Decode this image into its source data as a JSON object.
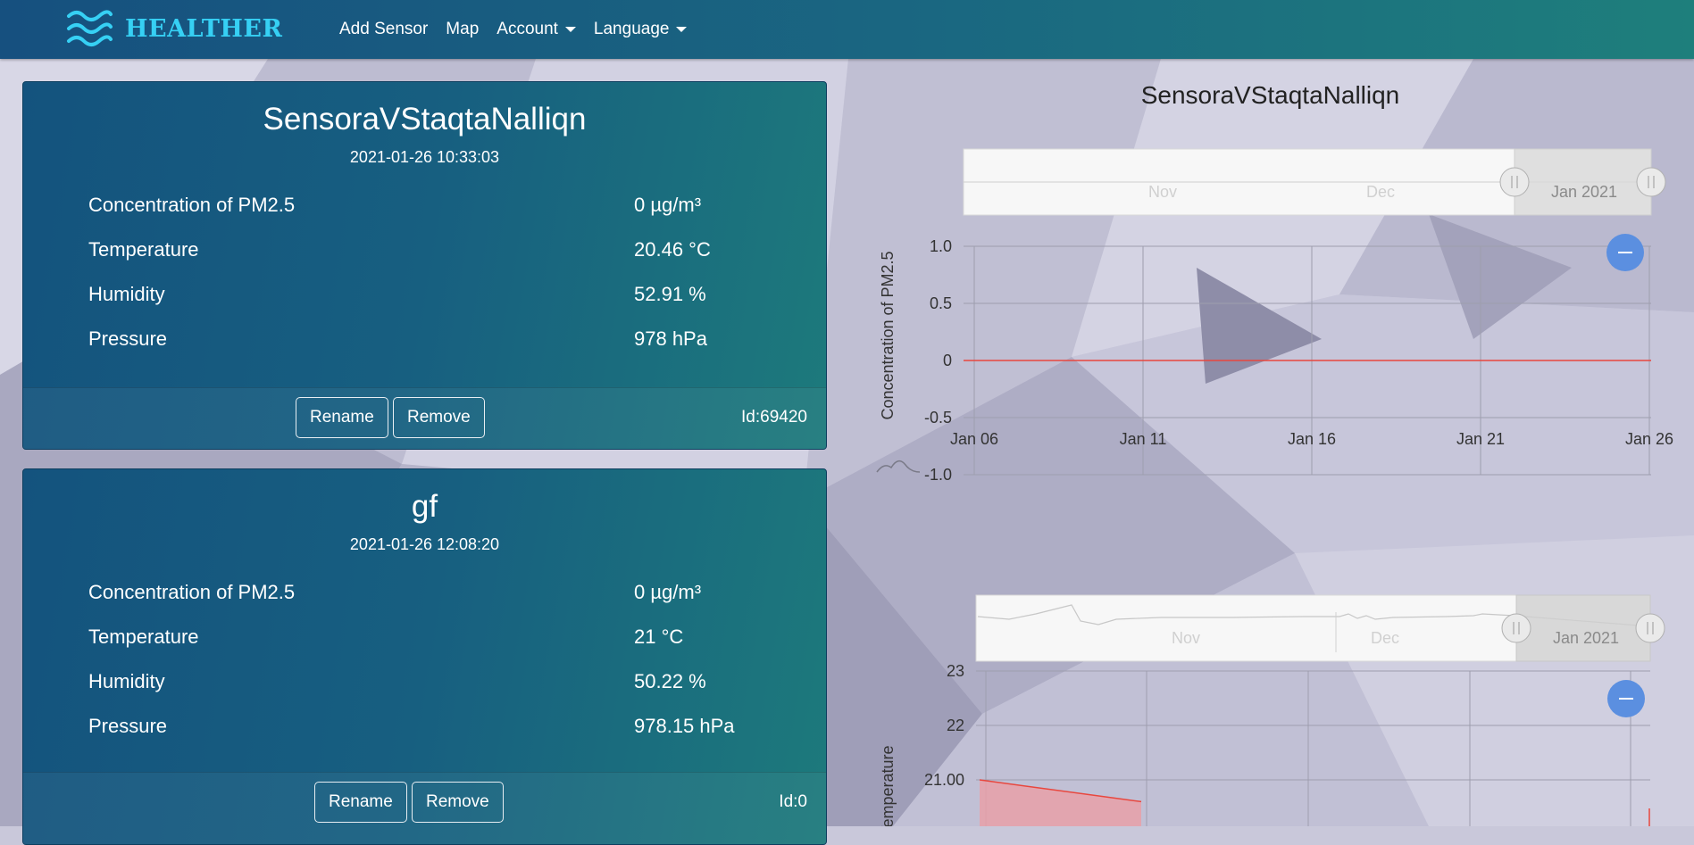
{
  "navbar": {
    "brand": "HEALTHER",
    "links": [
      "Add Sensor",
      "Map",
      "Account",
      "Language"
    ]
  },
  "sensors": [
    {
      "name": "SensoraVStaqtaNalliqn",
      "timestamp": "2021-01-26 10:33:03",
      "readings": [
        {
          "label": "Concentration of PM2.5",
          "value": "0 µg/m³"
        },
        {
          "label": "Temperature",
          "value": "20.46 °C"
        },
        {
          "label": "Humidity",
          "value": "52.91 %"
        },
        {
          "label": "Pressure",
          "value": "978 hPa"
        }
      ],
      "rename_label": "Rename",
      "remove_label": "Remove",
      "id_label": "Id:69420"
    },
    {
      "name": "gf",
      "timestamp": "2021-01-26 12:08:20",
      "readings": [
        {
          "label": "Concentration of PM2.5",
          "value": "0 µg/m³"
        },
        {
          "label": "Temperature",
          "value": "21 °C"
        },
        {
          "label": "Humidity",
          "value": "50.22 %"
        },
        {
          "label": "Pressure",
          "value": "978.15 hPa"
        }
      ],
      "rename_label": "Rename",
      "remove_label": "Remove",
      "id_label": "Id:0"
    }
  ],
  "chart_panel": {
    "title": "SensoraVStaqtaNalliqn"
  },
  "chart_data": [
    {
      "type": "line",
      "ylabel": "Concentration of PM2.5",
      "x": [
        "Jan 06",
        "Jan 11",
        "Jan 16",
        "Jan 21",
        "Jan 26"
      ],
      "ylim": [
        -1.0,
        1.0
      ],
      "ytick_labels": [
        "1.0",
        "0.5",
        "0",
        "-0.5",
        "-1.0"
      ],
      "series": [
        {
          "values": [
            0,
            0,
            0,
            0,
            0
          ]
        }
      ],
      "series_color": "#e8473e",
      "navigator_labels": [
        "Nov",
        "Dec",
        "Jan 2021"
      ],
      "grid": true
    },
    {
      "type": "area",
      "ylabel": "Temperature",
      "ylim": [
        21.0,
        23
      ],
      "ytick_labels": [
        "23",
        "22",
        "21.00"
      ],
      "series": [
        {
          "values": [
            21.0,
            20.6
          ]
        }
      ],
      "series_color": "#e8473e",
      "navigator_labels": [
        "Nov",
        "Dec",
        "Jan 2021"
      ],
      "grid": true
    }
  ],
  "colors": {
    "accent": "#36d0f4",
    "zoom_button": "#5b8fe0"
  }
}
